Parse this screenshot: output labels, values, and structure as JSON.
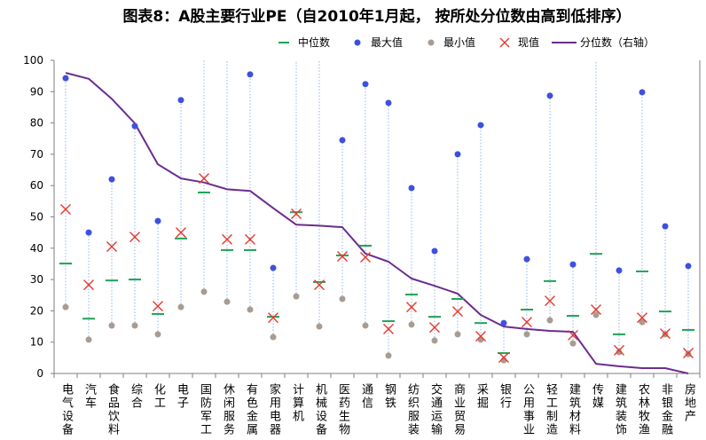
{
  "chart_data": {
    "type": "scatter",
    "title": "图表8：A股主要行业PE（自2010年1月起， 按所处分位数由高到低排序）",
    "categories": [
      "电气设备",
      "汽车",
      "食品饮料",
      "综合",
      "化工",
      "电子",
      "国防军工",
      "休闲服务",
      "有色金属",
      "家用电器",
      "计算机",
      "机械设备",
      "医药生物",
      "通信",
      "钢铁",
      "纺织服装",
      "交通运输",
      "商业贸易",
      "采掘",
      "银行",
      "公用事业",
      "轻工制造",
      "建筑材料",
      "传媒",
      "建筑装饰",
      "农林牧渔",
      "非银金融",
      "房地产"
    ],
    "series": [
      {
        "name": "中位数",
        "marker": "dash",
        "color": "#1fa355",
        "values": [
          35.1,
          17.5,
          29.7,
          30.0,
          19.0,
          43.1,
          57.8,
          39.4,
          39.4,
          18.1,
          51.5,
          29.2,
          37.7,
          40.8,
          16.7,
          25.2,
          18.1,
          23.8,
          16.1,
          6.5,
          20.4,
          29.5,
          18.4,
          38.2,
          12.5,
          32.6,
          19.8,
          13.9
        ]
      },
      {
        "name": "最大值",
        "marker": "circle",
        "color": "#3d50e0",
        "values": [
          94.3,
          45.0,
          62.0,
          79.0,
          48.7,
          87.3,
          null,
          null,
          95.5,
          33.7,
          null,
          null,
          74.5,
          92.4,
          86.4,
          59.2,
          39.1,
          70.0,
          79.3,
          16.1,
          36.5,
          88.7,
          34.8,
          null,
          32.9,
          89.8,
          47.0,
          34.3
        ]
      },
      {
        "name": "最小值",
        "marker": "circle",
        "color": "#a99b90",
        "values": [
          21.2,
          10.8,
          15.3,
          15.3,
          12.5,
          21.2,
          26.1,
          22.9,
          20.4,
          11.6,
          24.6,
          15.0,
          23.8,
          15.3,
          5.7,
          15.6,
          10.5,
          12.5,
          10.8,
          4.2,
          12.5,
          17.0,
          9.6,
          18.7,
          6.8,
          16.4,
          12.5,
          6.2
        ]
      },
      {
        "name": "现值",
        "marker": "x",
        "color": "#e53a2e",
        "values": [
          52.4,
          28.3,
          40.5,
          43.6,
          21.5,
          45.0,
          62.3,
          42.8,
          42.8,
          17.8,
          51.0,
          28.3,
          37.4,
          37.1,
          14.2,
          21.2,
          14.7,
          19.8,
          11.9,
          5.1,
          16.4,
          23.2,
          12.2,
          20.4,
          7.4,
          17.8,
          12.7,
          6.5
        ]
      },
      {
        "name": "分位数（右轴）",
        "marker": "line",
        "yaxis": "right",
        "color": "#6b2c8f",
        "values": [
          96.0,
          94.1,
          87.7,
          79.9,
          66.8,
          62.3,
          61.0,
          58.8,
          58.3,
          52.8,
          47.5,
          47.2,
          46.7,
          38.3,
          35.7,
          30.3,
          28.0,
          25.5,
          18.7,
          15.0,
          14.2,
          13.6,
          13.3,
          3.1,
          2.3,
          1.7,
          1.7,
          0.0
        ]
      }
    ],
    "ylim": [
      0,
      100
    ],
    "yticks": [
      0,
      10,
      20,
      30,
      40,
      50,
      60,
      70,
      80,
      90,
      100
    ],
    "y2lim": [
      0,
      100
    ],
    "grid": false,
    "legend": "top",
    "range_line_color": "#8fb5e8"
  }
}
